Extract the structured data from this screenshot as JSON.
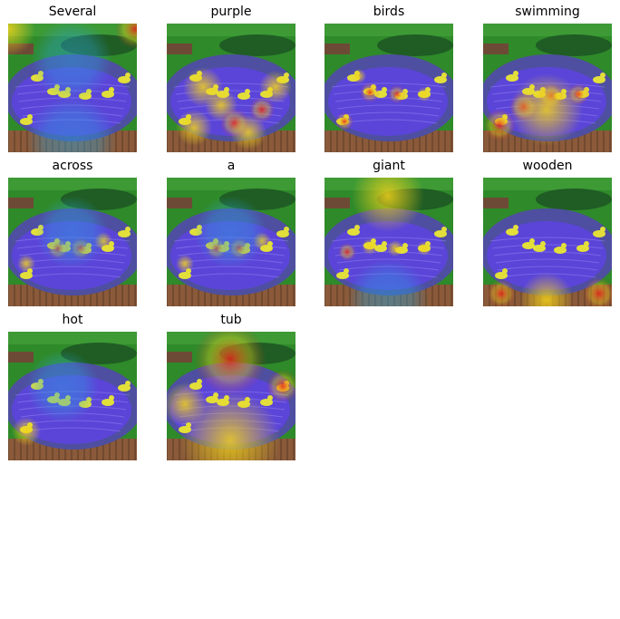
{
  "panels": [
    {
      "title": "Several",
      "focus": "scene"
    },
    {
      "title": "purple",
      "focus": "water"
    },
    {
      "title": "birds",
      "focus": "birds"
    },
    {
      "title": "swimming",
      "focus": "birds-wide"
    },
    {
      "title": "across",
      "focus": "center-birds"
    },
    {
      "title": "a",
      "focus": "center-birds"
    },
    {
      "title": "giant",
      "focus": "birds-soft"
    },
    {
      "title": "wooden",
      "focus": "wood"
    },
    {
      "title": "hot",
      "focus": "none"
    },
    {
      "title": "tub",
      "focus": "rim"
    }
  ],
  "colors": {
    "grass": "#2f8a2a",
    "hedge": "#1f5d24",
    "water": "#5b45d8",
    "rim": "#4e4fa0",
    "wood": "#8a5a3a",
    "duck": "#e2df3a",
    "heat_hot": "#e8201c",
    "heat_warm": "#f2d21a",
    "heat_cool": "#2aa3e0"
  }
}
